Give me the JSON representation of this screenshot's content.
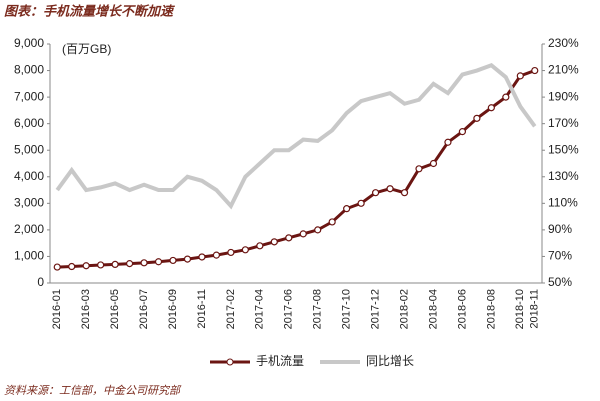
{
  "chart_data": {
    "type": "line",
    "title": "图表：手机流量增长不断加速",
    "y_label": "(百万GB)",
    "source": "资料来源：工信部，中金公司研究部",
    "categories": [
      "2016-01",
      null,
      "2016-03",
      null,
      "2016-05",
      null,
      "2016-07",
      null,
      "2016-09",
      null,
      "2016-11",
      null,
      "2017-02",
      null,
      "2017-04",
      null,
      "2017-06",
      null,
      "2017-08",
      null,
      "2017-10",
      null,
      "2017-12",
      null,
      "2018-02",
      null,
      "2018-04",
      null,
      "2018-06",
      null,
      "2018-08",
      null,
      "2018-10",
      "2018-11"
    ],
    "series": [
      {
        "name": "手机流量",
        "color": "#6b1512",
        "axis": "y",
        "values": [
          600,
          620,
          650,
          680,
          700,
          730,
          760,
          800,
          850,
          900,
          980,
          1050,
          1150,
          1250,
          1400,
          1550,
          1700,
          1850,
          2000,
          2300,
          2800,
          3000,
          3400,
          3550,
          3400,
          4300,
          4500,
          5300,
          5700,
          6200,
          6600,
          7000,
          7800,
          8000
        ]
      },
      {
        "name": "同比增长",
        "color": "#c8c8c8",
        "axis": "y2",
        "values": [
          120,
          135,
          120,
          122,
          125,
          120,
          124,
          120,
          120,
          130,
          127,
          120,
          108,
          130,
          140,
          150,
          150,
          158,
          157,
          165,
          178,
          187,
          190,
          193,
          185,
          188,
          200,
          193,
          207,
          210,
          214,
          205,
          183,
          168
        ]
      }
    ],
    "ylim": [
      0,
      9000
    ],
    "yticks": [
      0,
      {
        "value": 1000,
        "label": "1,000"
      },
      {
        "value": 2000,
        "label": "2,000"
      },
      {
        "value": 3000,
        "label": "3,000"
      },
      {
        "value": 4000,
        "label": "4,000"
      },
      {
        "value": 5000,
        "label": "5,000"
      },
      {
        "value": 6000,
        "label": "6,000"
      },
      {
        "value": 7000,
        "label": "7,000"
      },
      {
        "value": 8000,
        "label": "8,000"
      },
      {
        "value": 9000,
        "label": "9,000"
      }
    ],
    "y2lim": [
      50,
      230
    ],
    "y2ticks": [
      {
        "value": 50,
        "label": "50%"
      },
      {
        "value": 70,
        "label": "70%"
      },
      {
        "value": 90,
        "label": "90%"
      },
      {
        "value": 110,
        "label": "110%"
      },
      {
        "value": 130,
        "label": "130%"
      },
      {
        "value": 150,
        "label": "150%"
      },
      {
        "value": 170,
        "label": "170%"
      },
      {
        "value": 190,
        "label": "190%"
      },
      {
        "value": 210,
        "label": "210%"
      },
      {
        "value": 230,
        "label": "230%"
      }
    ],
    "legend": "bottom"
  }
}
